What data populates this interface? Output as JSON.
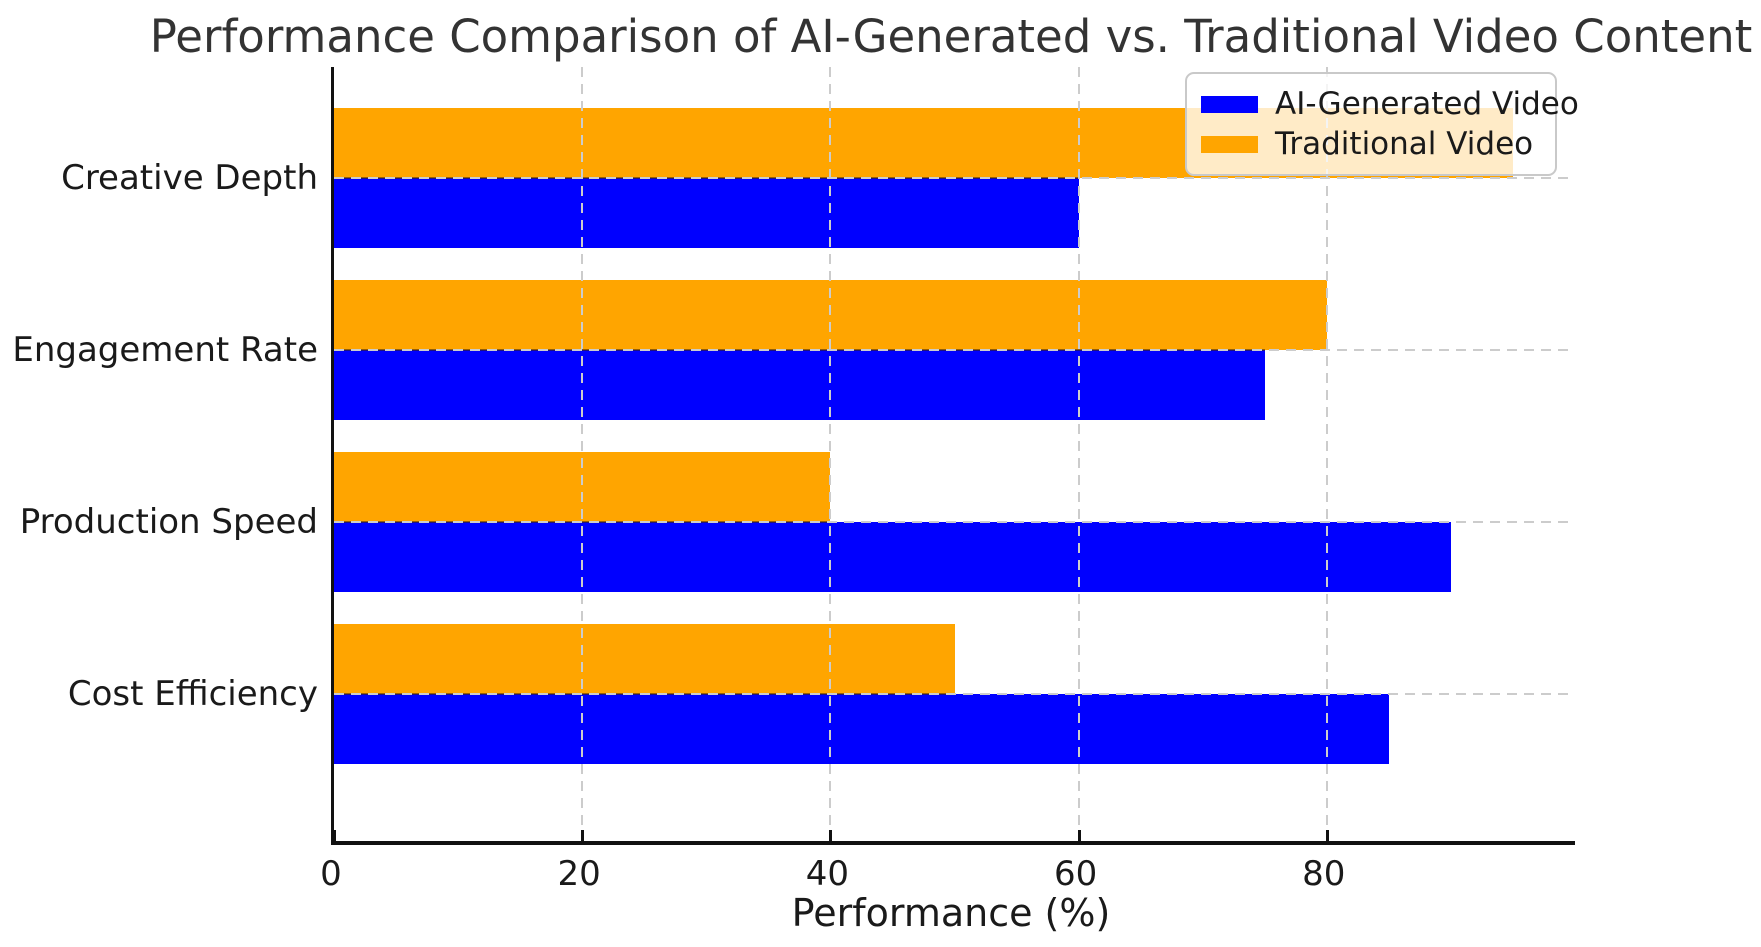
{
  "title": "Performance Comparison of AI-Generated vs. Traditional Video Content",
  "chart_data": {
    "type": "bar",
    "orientation": "horizontal",
    "title": "Performance Comparison of AI-Generated vs. Traditional Video Content",
    "xlabel": "Performance (%)",
    "ylabel": "",
    "categories": [
      "Creative Depth",
      "Engagement Rate",
      "Production Speed",
      "Cost Efficiency"
    ],
    "series": [
      {
        "name": "AI-Generated Video",
        "color": "#0000ff",
        "values": [
          60,
          75,
          90,
          85
        ]
      },
      {
        "name": "Traditional Video",
        "color": "#ffa500",
        "values": [
          95,
          80,
          40,
          50
        ]
      }
    ],
    "x_ticks": [
      0,
      20,
      40,
      60,
      80
    ],
    "xlim": [
      0,
      100
    ],
    "grid": true,
    "grid_style": "dashed",
    "legend_position": "upper right",
    "bar_group_order_top_to_bottom": [
      "Traditional Video",
      "AI-Generated Video"
    ]
  },
  "legend": {
    "items": [
      {
        "label": "AI-Generated Video",
        "color": "#0000ff"
      },
      {
        "label": "Traditional Video",
        "color": "#ffa500"
      }
    ]
  }
}
